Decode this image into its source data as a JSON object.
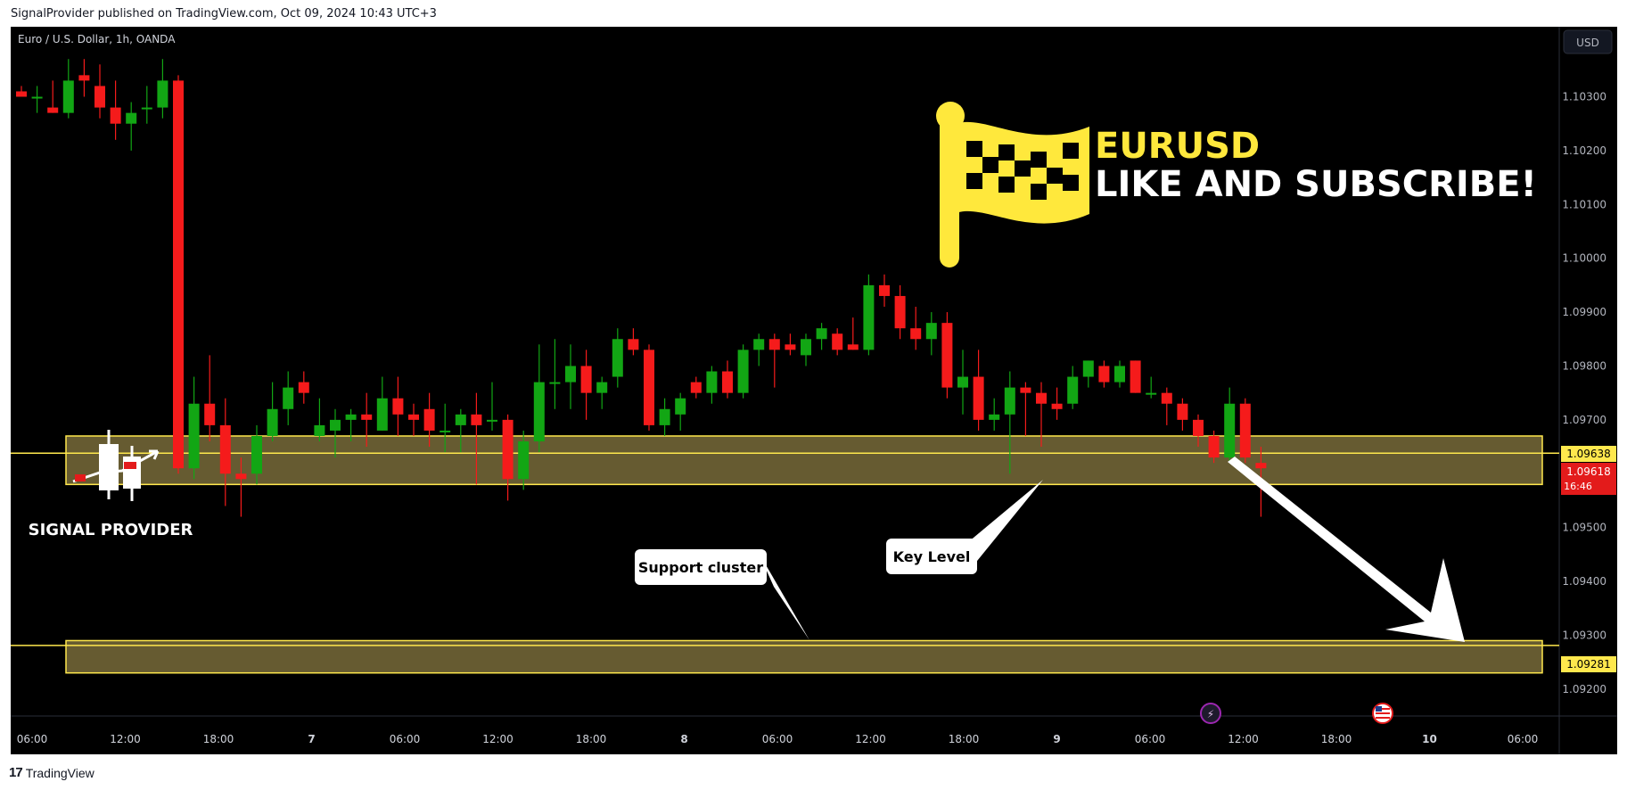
{
  "caption": "SignalProvider published on TradingView.com, Oct 09, 2024 10:43 UTC+3",
  "footer_logo": "TradingView",
  "symbol_label": "Euro / U.S. Dollar, 1h, OANDA",
  "currency_button": "USD",
  "headline": {
    "line1": "EURUSD",
    "line2": "LIKE AND SUBSCRIBE!"
  },
  "brand": "SIGNAL PROVIDER",
  "callouts": {
    "support": "Support cluster",
    "key": "Key Level"
  },
  "price_tags": {
    "upper": "1.09638",
    "current": "1.09618",
    "countdown": "16:46",
    "lower": "1.09281"
  },
  "colors": {
    "up": "#12a614",
    "down": "#f51b1b",
    "zone_fill": "#6b6034",
    "zone_border": "#ffe84d",
    "headline_yellow": "#ffe83c",
    "background": "#000000"
  },
  "chart_data": {
    "type": "candlestick",
    "yaxis_ticks": [
      "1.10300",
      "1.10200",
      "1.10100",
      "1.10000",
      "1.09900",
      "1.09800",
      "1.09700",
      "1.09500",
      "1.09400",
      "1.09300",
      "1.09200"
    ],
    "xaxis_ticks": [
      "06:00",
      "12:00",
      "18:00",
      "7",
      "06:00",
      "12:00",
      "18:00",
      "8",
      "06:00",
      "12:00",
      "18:00",
      "9",
      "06:00",
      "12:00",
      "18:00",
      "10",
      "06:00"
    ],
    "ylim": [
      1.0915,
      1.1043
    ],
    "horizontal_lines": [
      1.09638,
      1.09281
    ],
    "zones": [
      [
        1.0958,
        1.0967
      ],
      [
        1.0923,
        1.0929
      ]
    ],
    "candles": [
      [
        1.1031,
        1.1032,
        1.103,
        1.103
      ],
      [
        1.103,
        1.1032,
        1.1027,
        1.103
      ],
      [
        1.1028,
        1.1033,
        1.1027,
        1.1027
      ],
      [
        1.1027,
        1.1037,
        1.1026,
        1.1033
      ],
      [
        1.1034,
        1.1037,
        1.103,
        1.1033
      ],
      [
        1.1032,
        1.1036,
        1.1026,
        1.1028
      ],
      [
        1.1028,
        1.1033,
        1.1022,
        1.1025
      ],
      [
        1.1025,
        1.1029,
        1.102,
        1.1027
      ],
      [
        1.1028,
        1.1032,
        1.1025,
        1.1028
      ],
      [
        1.1028,
        1.1037,
        1.1026,
        1.1033
      ],
      [
        1.1033,
        1.1034,
        1.096,
        1.0961
      ],
      [
        1.0961,
        1.0978,
        1.0959,
        1.0973
      ],
      [
        1.0973,
        1.0982,
        1.0966,
        1.0969
      ],
      [
        1.0969,
        1.0974,
        1.0954,
        1.096
      ],
      [
        1.096,
        1.0963,
        1.0952,
        1.0959
      ],
      [
        1.096,
        1.0969,
        1.0958,
        1.0967
      ],
      [
        1.0967,
        1.0977,
        1.0966,
        1.0972
      ],
      [
        1.0972,
        1.0979,
        1.0969,
        1.0976
      ],
      [
        1.0977,
        1.0979,
        1.0973,
        1.0975
      ],
      [
        1.0967,
        1.0974,
        1.0966,
        1.0969
      ],
      [
        1.0968,
        1.0972,
        1.0963,
        1.097
      ],
      [
        1.097,
        1.0972,
        1.0966,
        1.0971
      ],
      [
        1.0971,
        1.0975,
        1.0965,
        1.097
      ],
      [
        1.0968,
        1.0978,
        1.0968,
        1.0974
      ],
      [
        1.0974,
        1.0978,
        1.0967,
        1.0971
      ],
      [
        1.0971,
        1.0973,
        1.0967,
        1.097
      ],
      [
        1.0972,
        1.0975,
        1.0965,
        1.0968
      ],
      [
        1.0968,
        1.0973,
        1.0964,
        1.0968
      ],
      [
        1.0969,
        1.0972,
        1.0964,
        1.0971
      ],
      [
        1.0971,
        1.0975,
        1.0958,
        1.0969
      ],
      [
        1.097,
        1.0977,
        1.0968,
        1.097
      ],
      [
        1.097,
        1.0971,
        1.0955,
        1.0959
      ],
      [
        1.0959,
        1.0968,
        1.0957,
        1.0966
      ],
      [
        1.0966,
        1.0984,
        1.0964,
        1.0977
      ],
      [
        1.0977,
        1.0985,
        1.0972,
        1.0977
      ],
      [
        1.0977,
        1.0984,
        1.0972,
        1.098
      ],
      [
        1.098,
        1.0983,
        1.097,
        1.0975
      ],
      [
        1.0975,
        1.0978,
        1.0972,
        1.0977
      ],
      [
        1.0978,
        1.0987,
        1.0976,
        1.0985
      ],
      [
        1.0985,
        1.0987,
        1.0982,
        1.0983
      ],
      [
        1.0983,
        1.0984,
        1.0968,
        1.0969
      ],
      [
        1.0969,
        1.0974,
        1.0967,
        1.0972
      ],
      [
        1.0971,
        1.0975,
        1.0968,
        1.0974
      ],
      [
        1.0977,
        1.0978,
        1.0974,
        1.0975
      ],
      [
        1.0975,
        1.098,
        1.0973,
        1.0979
      ],
      [
        1.0979,
        1.0981,
        1.0974,
        1.0975
      ],
      [
        1.0975,
        1.0984,
        1.0974,
        1.0983
      ],
      [
        1.0983,
        1.0986,
        1.098,
        1.0985
      ],
      [
        1.0985,
        1.0986,
        1.0976,
        1.0983
      ],
      [
        1.0984,
        1.0986,
        1.0982,
        1.0983
      ],
      [
        1.0982,
        1.0986,
        1.098,
        1.0985
      ],
      [
        1.0985,
        1.0988,
        1.0983,
        1.0987
      ],
      [
        1.0986,
        1.0987,
        1.0982,
        1.0983
      ],
      [
        1.0984,
        1.0989,
        1.0983,
        1.0983
      ],
      [
        1.0983,
        1.0997,
        1.0982,
        1.0995
      ],
      [
        1.0995,
        1.0997,
        1.0991,
        1.0993
      ],
      [
        1.0993,
        1.0995,
        1.0985,
        1.0987
      ],
      [
        1.0987,
        1.0991,
        1.0983,
        1.0985
      ],
      [
        1.0985,
        1.099,
        1.0982,
        1.0988
      ],
      [
        1.0988,
        1.099,
        1.0974,
        1.0976
      ],
      [
        1.0976,
        1.0983,
        1.0971,
        1.0978
      ],
      [
        1.0978,
        1.0983,
        1.0968,
        1.097
      ],
      [
        1.097,
        1.0974,
        1.0968,
        1.0971
      ],
      [
        1.0971,
        1.0979,
        1.096,
        1.0976
      ],
      [
        1.0976,
        1.0977,
        1.0967,
        1.0975
      ],
      [
        1.0975,
        1.0977,
        1.0965,
        1.0973
      ],
      [
        1.0973,
        1.0976,
        1.097,
        1.0972
      ],
      [
        1.0973,
        1.098,
        1.0972,
        1.0978
      ],
      [
        1.0978,
        1.0981,
        1.0976,
        1.0981
      ],
      [
        1.098,
        1.0981,
        1.0976,
        1.0977
      ],
      [
        1.0977,
        1.0981,
        1.0976,
        1.098
      ],
      [
        1.0981,
        1.0981,
        1.0975,
        1.0975
      ],
      [
        1.0975,
        1.0978,
        1.0974,
        1.0975
      ],
      [
        1.0975,
        1.0976,
        1.0969,
        1.0973
      ],
      [
        1.0973,
        1.0974,
        1.0968,
        1.097
      ],
      [
        1.097,
        1.0971,
        1.0965,
        1.0967
      ],
      [
        1.0967,
        1.0968,
        1.0962,
        1.0963
      ],
      [
        1.0963,
        1.0976,
        1.0962,
        1.0973
      ],
      [
        1.0973,
        1.0974,
        1.0962,
        1.0963
      ],
      [
        1.0962,
        1.0965,
        1.0952,
        1.0961
      ]
    ]
  }
}
